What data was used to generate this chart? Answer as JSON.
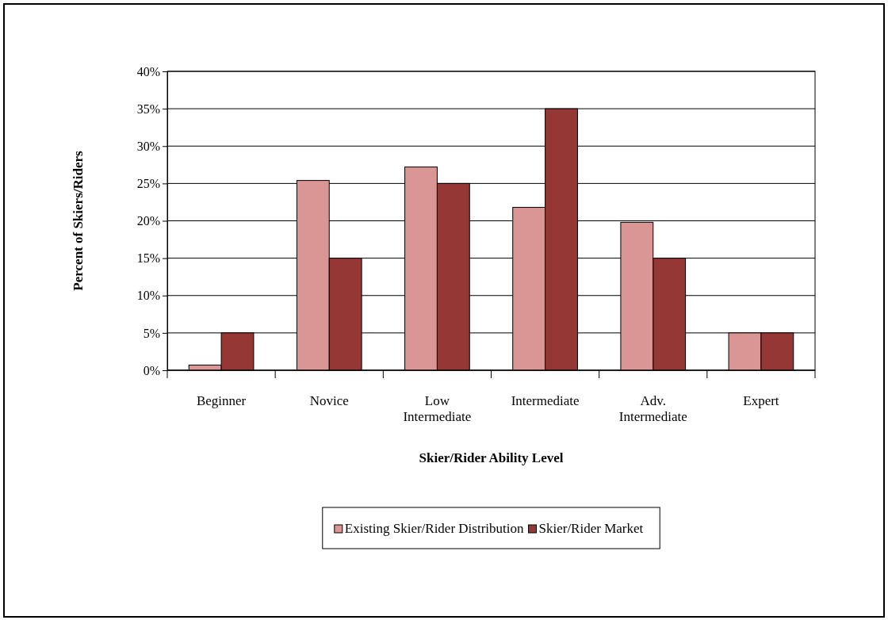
{
  "chart_data": {
    "type": "bar",
    "xlabel": "Skier/Rider Ability Level",
    "ylabel": "Percent of Skiers/Riders",
    "categories": [
      "Beginner",
      "Novice",
      "Low Intermediate",
      "Intermediate",
      "Adv. Intermediate",
      "Expert"
    ],
    "series": [
      {
        "name": "Existing Skier/Rider Distribution",
        "color": "#d99694",
        "values": [
          0.7,
          25.4,
          27.2,
          21.8,
          19.8,
          5
        ]
      },
      {
        "name": "Skier/Rider Market",
        "color": "#953735",
        "values": [
          5,
          15,
          25,
          35,
          15,
          5
        ]
      }
    ],
    "ylim": [
      0,
      40
    ],
    "yticks": [
      {
        "value": 0,
        "label": "0%"
      },
      {
        "value": 5,
        "label": "5%"
      },
      {
        "value": 10,
        "label": "10%"
      },
      {
        "value": 15,
        "label": "15%"
      },
      {
        "value": 20,
        "label": "20%"
      },
      {
        "value": 25,
        "label": "25%"
      },
      {
        "value": 30,
        "label": "30%"
      },
      {
        "value": 35,
        "label": "35%"
      },
      {
        "value": 40,
        "label": "40%"
      }
    ],
    "grid": "y",
    "legend": "bottom"
  }
}
